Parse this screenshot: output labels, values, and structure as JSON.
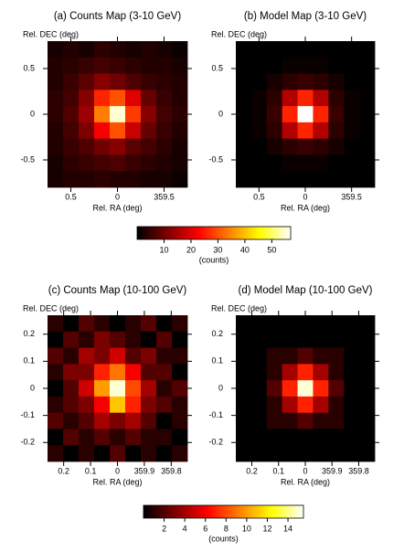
{
  "chart_data": [
    {
      "type": "heatmap",
      "title": "(a) Counts Map (3-10 GeV)",
      "xlabel": "Rel. RA (deg)",
      "ylabel": "Rel. DEC (deg)",
      "xlim": [
        0.75,
        -0.75
      ],
      "ylim": [
        -0.8,
        0.8
      ],
      "clim": [
        0,
        57
      ],
      "colormap": "hot",
      "xticks": [
        0.5,
        0,
        {
          "value": -0.5,
          "label": "359.5"
        }
      ],
      "yticks": [
        0.5,
        0,
        -0.5
      ],
      "z": [
        [
          2,
          3,
          2,
          4,
          3,
          2,
          3,
          2,
          1
        ],
        [
          3,
          4,
          5,
          6,
          5,
          4,
          3,
          3,
          2
        ],
        [
          3,
          5,
          8,
          12,
          10,
          7,
          5,
          4,
          3
        ],
        [
          4,
          6,
          12,
          26,
          30,
          20,
          9,
          5,
          3
        ],
        [
          4,
          7,
          14,
          34,
          55,
          28,
          12,
          6,
          4
        ],
        [
          3,
          6,
          11,
          22,
          30,
          18,
          9,
          5,
          3
        ],
        [
          3,
          5,
          7,
          10,
          12,
          8,
          6,
          4,
          2
        ],
        [
          2,
          4,
          5,
          6,
          7,
          5,
          4,
          3,
          2
        ],
        [
          2,
          3,
          3,
          4,
          3,
          3,
          2,
          2,
          1
        ]
      ]
    },
    {
      "type": "heatmap",
      "title": "(b) Model Map (3-10 GeV)",
      "xlabel": "Rel. RA (deg)",
      "ylabel": "Rel. DEC (deg)",
      "xlim": [
        0.75,
        -0.75
      ],
      "ylim": [
        -0.8,
        0.8
      ],
      "clim": [
        0,
        57
      ],
      "colormap": "hot",
      "xticks": [
        0.5,
        0,
        {
          "value": -0.5,
          "label": "359.5"
        }
      ],
      "yticks": [
        0.5,
        0,
        -0.5
      ],
      "z": [
        [
          0,
          0,
          0,
          0,
          0,
          0,
          0,
          0,
          0
        ],
        [
          0,
          0,
          0,
          1,
          1,
          1,
          0,
          0,
          0
        ],
        [
          0,
          0,
          2,
          4,
          5,
          4,
          2,
          0,
          0
        ],
        [
          0,
          1,
          4,
          16,
          26,
          16,
          4,
          1,
          0
        ],
        [
          0,
          1,
          5,
          26,
          57,
          26,
          5,
          1,
          0
        ],
        [
          0,
          1,
          4,
          16,
          26,
          16,
          4,
          1,
          0
        ],
        [
          0,
          0,
          2,
          4,
          5,
          4,
          2,
          0,
          0
        ],
        [
          0,
          0,
          0,
          1,
          1,
          1,
          0,
          0,
          0
        ],
        [
          0,
          0,
          0,
          0,
          0,
          0,
          0,
          0,
          0
        ]
      ]
    },
    {
      "type": "colorbar",
      "label": "(counts)",
      "clim": [
        0,
        57
      ],
      "colormap": "hot",
      "ticks": [
        10,
        20,
        30,
        40,
        50
      ]
    },
    {
      "type": "heatmap",
      "title": "(c) Counts Map (10-100 GeV)",
      "xlabel": "Rel. RA (deg)",
      "ylabel": "Rel. DEC (deg)",
      "xlim": [
        0.26,
        -0.26
      ],
      "ylim": [
        -0.27,
        0.27
      ],
      "clim": [
        0,
        15.5
      ],
      "colormap": "hot",
      "xticks": [
        0.2,
        0.1,
        0,
        {
          "value": -0.1,
          "label": "359.9"
        },
        {
          "value": -0.2,
          "label": "359.8"
        }
      ],
      "yticks": [
        0.2,
        0.1,
        0,
        -0.1,
        -0.2
      ],
      "z": [
        [
          1,
          0,
          2,
          1,
          0,
          1,
          2,
          0,
          1
        ],
        [
          0,
          2,
          1,
          3,
          2,
          1,
          0,
          2,
          0
        ],
        [
          2,
          1,
          4,
          3,
          5,
          2,
          3,
          1,
          1
        ],
        [
          1,
          3,
          3,
          7,
          9,
          6,
          2,
          2,
          0
        ],
        [
          0,
          2,
          5,
          10,
          15,
          8,
          4,
          1,
          2
        ],
        [
          1,
          2,
          3,
          6,
          11,
          7,
          3,
          2,
          1
        ],
        [
          2,
          1,
          2,
          4,
          3,
          4,
          2,
          0,
          1
        ],
        [
          0,
          2,
          1,
          2,
          1,
          2,
          1,
          1,
          0
        ],
        [
          1,
          0,
          1,
          0,
          2,
          0,
          1,
          0,
          1
        ]
      ]
    },
    {
      "type": "heatmap",
      "title": "(d) Model Map (10-100 GeV)",
      "xlabel": "Rel. RA (deg)",
      "ylabel": "Rel. DEC (deg)",
      "xlim": [
        0.26,
        -0.26
      ],
      "ylim": [
        -0.27,
        0.27
      ],
      "clim": [
        0,
        15.5
      ],
      "colormap": "hot",
      "xticks": [
        0.2,
        0.1,
        0,
        {
          "value": -0.1,
          "label": "359.9"
        },
        {
          "value": -0.2,
          "label": "359.8"
        }
      ],
      "yticks": [
        0.2,
        0.1,
        0,
        -0.1,
        -0.2
      ],
      "z": [
        [
          0,
          0,
          0,
          0,
          0,
          0,
          0,
          0,
          0
        ],
        [
          0,
          0,
          0,
          0,
          0,
          0,
          0,
          0,
          0
        ],
        [
          0,
          0,
          1,
          1,
          2,
          1,
          1,
          0,
          0
        ],
        [
          0,
          0,
          1,
          4,
          7,
          4,
          1,
          0,
          0
        ],
        [
          0,
          0,
          2,
          7,
          15,
          7,
          2,
          0,
          0
        ],
        [
          0,
          0,
          1,
          4,
          7,
          4,
          1,
          0,
          0
        ],
        [
          0,
          0,
          1,
          1,
          2,
          1,
          1,
          0,
          0
        ],
        [
          0,
          0,
          0,
          0,
          0,
          0,
          0,
          0,
          0
        ],
        [
          0,
          0,
          0,
          0,
          0,
          0,
          0,
          0,
          0
        ]
      ]
    },
    {
      "type": "colorbar",
      "label": "(counts)",
      "clim": [
        0,
        15.5
      ],
      "colormap": "hot",
      "ticks": [
        2,
        4,
        6,
        8,
        10,
        12,
        14
      ]
    }
  ]
}
